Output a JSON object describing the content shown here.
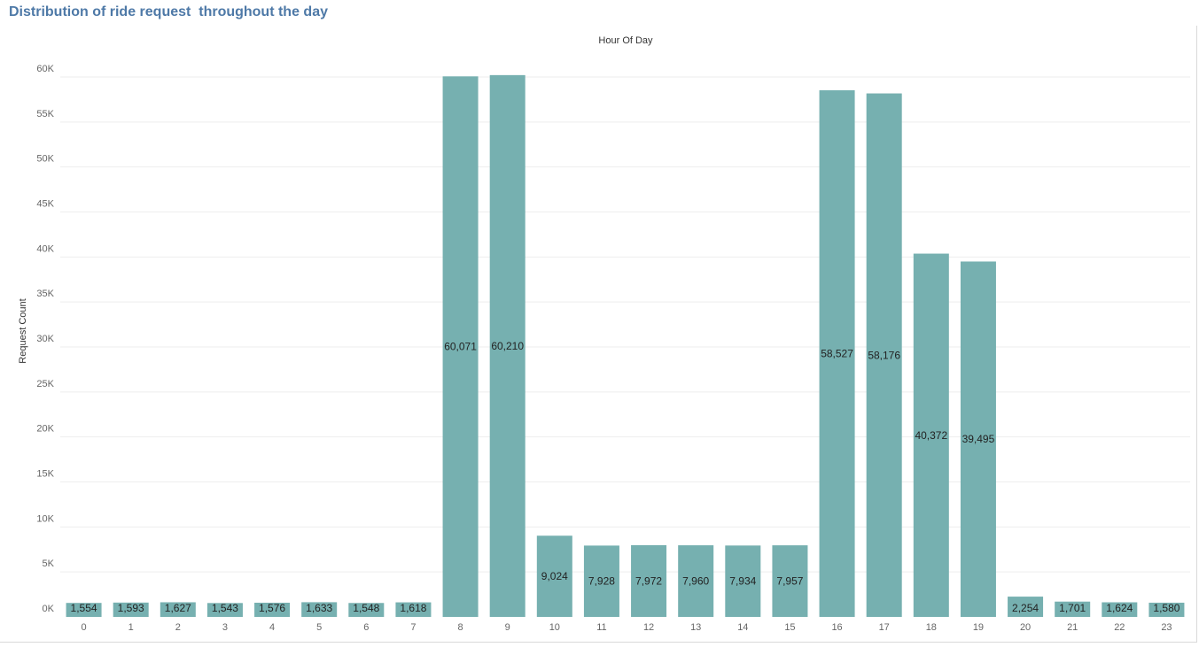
{
  "title": "Distribution of ride request  throughout the day",
  "colors": {
    "bar": "#76b0b0",
    "grid": "#eeeeee",
    "title": "#4e79a7"
  },
  "chart_data": {
    "type": "bar",
    "title": "Distribution of ride request  throughout the day",
    "xlabel": "Hour Of Day",
    "ylabel": "Request Count",
    "categories": [
      "0",
      "1",
      "2",
      "3",
      "4",
      "5",
      "6",
      "7",
      "8",
      "9",
      "10",
      "11",
      "12",
      "13",
      "14",
      "15",
      "16",
      "17",
      "18",
      "19",
      "20",
      "21",
      "22",
      "23"
    ],
    "values": [
      1554,
      1593,
      1627,
      1543,
      1576,
      1633,
      1548,
      1618,
      60071,
      60210,
      9024,
      7928,
      7972,
      7960,
      7934,
      7957,
      58527,
      58176,
      40372,
      39495,
      2254,
      1701,
      1624,
      1580
    ],
    "value_labels": [
      "1,554",
      "1,593",
      "1,627",
      "1,543",
      "1,576",
      "1,633",
      "1,548",
      "1,618",
      "60,071",
      "60,210",
      "9,024",
      "7,928",
      "7,972",
      "7,960",
      "7,934",
      "7,957",
      "58,527",
      "58,176",
      "40,372",
      "39,495",
      "2,254",
      "1,701",
      "1,624",
      "1,580"
    ],
    "y_ticks": [
      0,
      5000,
      10000,
      15000,
      20000,
      25000,
      30000,
      35000,
      40000,
      45000,
      50000,
      55000,
      60000
    ],
    "y_tick_labels": [
      "0K",
      "5K",
      "10K",
      "15K",
      "20K",
      "25K",
      "30K",
      "35K",
      "40K",
      "45K",
      "50K",
      "55K",
      "60K"
    ],
    "ylim": [
      0,
      61000
    ],
    "grid": true,
    "legend": "none"
  }
}
